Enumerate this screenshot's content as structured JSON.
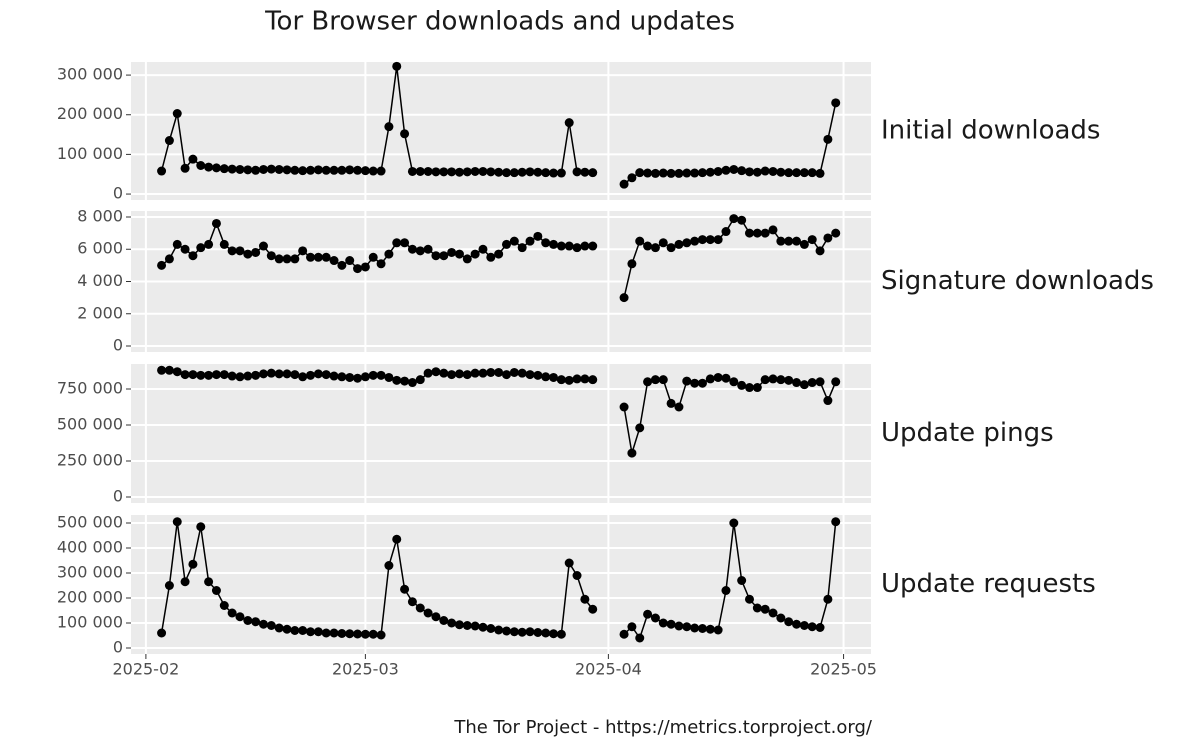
{
  "chart_data": {
    "type": "line",
    "title": "Tor Browser downloads and updates",
    "caption": "The Tor Project - https://metrics.torproject.org/",
    "xlim": [
      -1.9,
      92.5
    ],
    "xticks": [
      {
        "value": 0,
        "label": "2025-02"
      },
      {
        "value": 28,
        "label": "2025-03"
      },
      {
        "value": 59,
        "label": "2025-04"
      },
      {
        "value": 89,
        "label": "2025-05"
      }
    ],
    "x": [
      2,
      3,
      4,
      5,
      6,
      7,
      8,
      9,
      10,
      11,
      12,
      13,
      14,
      15,
      16,
      17,
      18,
      19,
      20,
      21,
      22,
      23,
      24,
      25,
      26,
      27,
      28,
      29,
      30,
      31,
      32,
      33,
      34,
      35,
      36,
      37,
      38,
      39,
      40,
      41,
      42,
      43,
      44,
      45,
      46,
      47,
      48,
      49,
      50,
      51,
      52,
      53,
      54,
      55,
      56,
      57,
      58,
      59,
      60,
      61,
      62,
      63,
      64,
      65,
      66,
      67,
      68,
      69,
      70,
      71,
      72,
      73,
      74,
      75,
      76,
      77,
      78,
      79,
      80,
      81,
      82,
      83,
      84,
      85,
      86,
      87,
      88
    ],
    "grid": true,
    "color": "#000000",
    "series": [
      {
        "name": "Initial downloads",
        "ylim": [
          -15000,
          333000
        ],
        "yticks": [
          0,
          {
            "value": 100000,
            "label": "100 000"
          },
          {
            "value": 200000,
            "label": "200 000"
          },
          {
            "value": 300000,
            "label": "300 000"
          }
        ],
        "values": [
          58000,
          135000,
          203000,
          65000,
          88000,
          72000,
          68000,
          66000,
          64000,
          63000,
          62000,
          61000,
          60000,
          62000,
          63000,
          62000,
          61000,
          60000,
          59000,
          60000,
          61000,
          60000,
          60000,
          60000,
          61000,
          60000,
          59000,
          58000,
          58000,
          170000,
          322000,
          152000,
          57000,
          57000,
          57000,
          56000,
          56000,
          56000,
          55000,
          56000,
          57000,
          57000,
          56000,
          55000,
          54000,
          54000,
          55000,
          56000,
          55000,
          54000,
          53000,
          53000,
          180000,
          56000,
          55000,
          54000,
          null,
          null,
          null,
          25000,
          41000,
          54000,
          53000,
          52000,
          53000,
          52000,
          52000,
          53000,
          53000,
          54000,
          55000,
          57000,
          60000,
          62000,
          59000,
          56000,
          55000,
          58000,
          57000,
          55000,
          54000,
          54000,
          54000,
          54000,
          52000,
          138000,
          230000
        ]
      },
      {
        "name": "Signature downloads",
        "ylim": [
          -372,
          8372
        ],
        "yticks": [
          0,
          {
            "value": 2000,
            "label": "2 000"
          },
          {
            "value": 4000,
            "label": "4 000"
          },
          {
            "value": 6000,
            "label": "6 000"
          },
          {
            "value": 8000,
            "label": "8 000"
          }
        ],
        "values": [
          5000,
          5400,
          6300,
          6000,
          5600,
          6100,
          6300,
          7600,
          6300,
          5900,
          5900,
          5700,
          5800,
          6200,
          5600,
          5400,
          5400,
          5400,
          5900,
          5500,
          5500,
          5500,
          5300,
          5000,
          5300,
          4800,
          4900,
          5500,
          5100,
          5700,
          6400,
          6400,
          6000,
          5900,
          6000,
          5600,
          5600,
          5800,
          5700,
          5400,
          5700,
          6000,
          5500,
          5700,
          6300,
          6500,
          6100,
          6500,
          6800,
          6400,
          6300,
          6200,
          6200,
          6100,
          6200,
          6200,
          null,
          null,
          null,
          3000,
          5100,
          6500,
          6200,
          6100,
          6400,
          6100,
          6300,
          6400,
          6500,
          6600,
          6600,
          6600,
          7100,
          7900,
          7800,
          7000,
          7000,
          7000,
          7200,
          6500,
          6500,
          6500,
          6300,
          6600,
          5900,
          6700,
          7000
        ]
      },
      {
        "name": "Update pings",
        "ylim": [
          -41667,
          923611
        ],
        "yticks": [
          0,
          {
            "value": 250000,
            "label": "250 000"
          },
          {
            "value": 500000,
            "label": "500 000"
          },
          {
            "value": 750000,
            "label": "750 000"
          }
        ],
        "values": [
          880000,
          880000,
          870000,
          850000,
          850000,
          845000,
          845000,
          850000,
          850000,
          840000,
          835000,
          840000,
          845000,
          855000,
          860000,
          855000,
          855000,
          850000,
          835000,
          845000,
          855000,
          850000,
          840000,
          835000,
          830000,
          825000,
          835000,
          845000,
          845000,
          830000,
          810000,
          805000,
          795000,
          815000,
          860000,
          870000,
          860000,
          850000,
          855000,
          850000,
          860000,
          860000,
          865000,
          865000,
          850000,
          865000,
          860000,
          850000,
          845000,
          835000,
          830000,
          815000,
          810000,
          820000,
          820000,
          815000,
          null,
          null,
          null,
          625000,
          305000,
          480000,
          800000,
          815000,
          815000,
          650000,
          625000,
          805000,
          790000,
          790000,
          820000,
          830000,
          825000,
          800000,
          775000,
          760000,
          760000,
          815000,
          820000,
          815000,
          810000,
          795000,
          780000,
          795000,
          800000,
          670000,
          800000
        ]
      },
      {
        "name": "Update requests",
        "ylim": [
          -24000,
          532000
        ],
        "yticks": [
          0,
          {
            "value": 100000,
            "label": "100 000"
          },
          {
            "value": 200000,
            "label": "200 000"
          },
          {
            "value": 300000,
            "label": "300 000"
          },
          {
            "value": 400000,
            "label": "400 000"
          },
          {
            "value": 500000,
            "label": "500 000"
          }
        ],
        "values": [
          60000,
          250000,
          505000,
          265000,
          335000,
          485000,
          265000,
          230000,
          170000,
          140000,
          125000,
          110000,
          105000,
          95000,
          90000,
          80000,
          75000,
          70000,
          70000,
          65000,
          65000,
          60000,
          60000,
          58000,
          57000,
          56000,
          55000,
          55000,
          52000,
          330000,
          435000,
          235000,
          185000,
          160000,
          140000,
          125000,
          110000,
          100000,
          93000,
          90000,
          88000,
          83000,
          78000,
          72000,
          68000,
          65000,
          63000,
          65000,
          62000,
          60000,
          57000,
          55000,
          340000,
          290000,
          195000,
          155000,
          null,
          null,
          null,
          55000,
          85000,
          40000,
          135000,
          120000,
          100000,
          95000,
          88000,
          85000,
          80000,
          78000,
          75000,
          72000,
          230000,
          500000,
          270000,
          195000,
          160000,
          155000,
          140000,
          120000,
          105000,
          95000,
          90000,
          85000,
          82000,
          195000,
          505000
        ]
      }
    ]
  }
}
